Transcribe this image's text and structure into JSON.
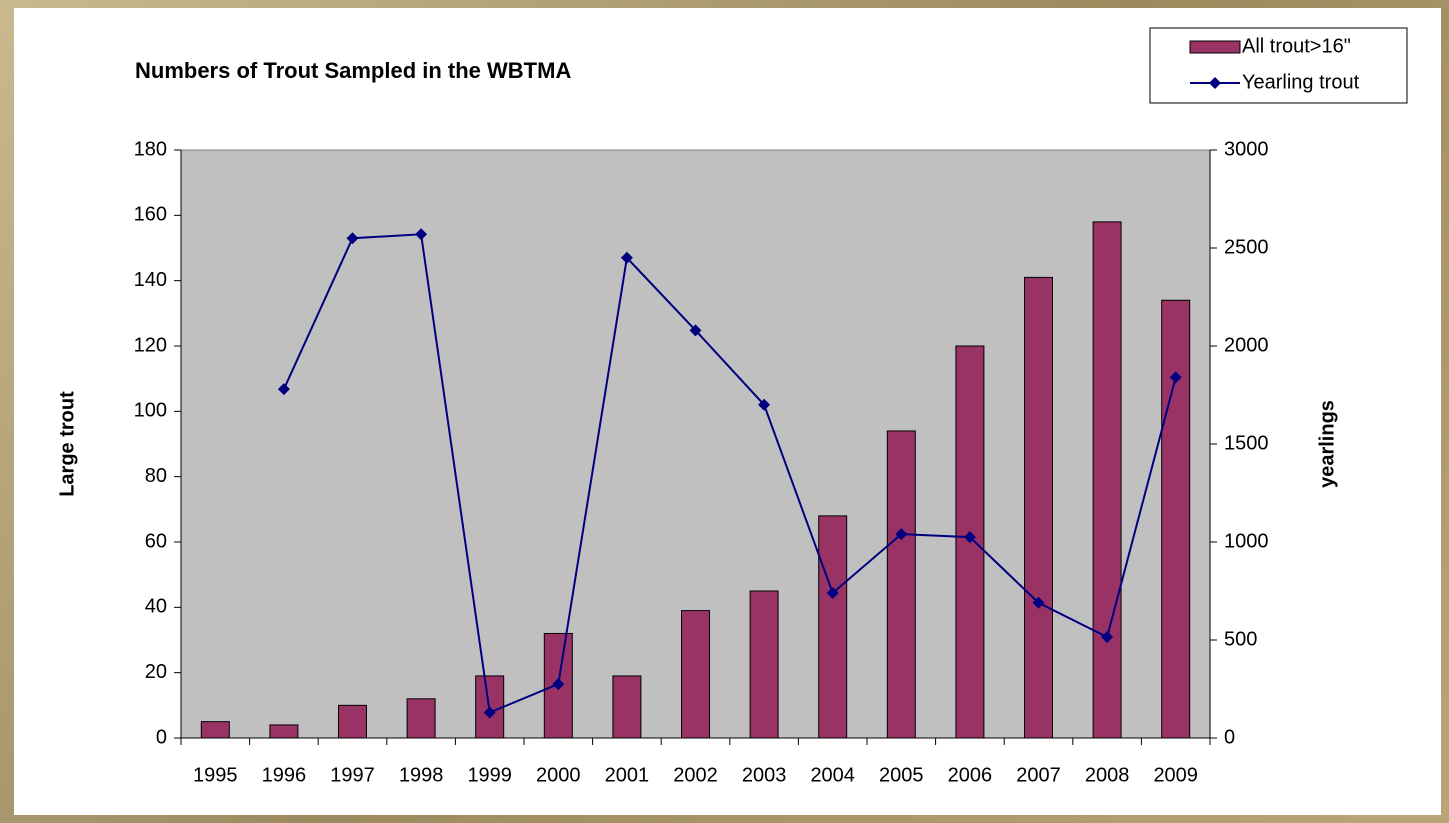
{
  "chart_data": {
    "type": "bar",
    "title": "Numbers of Trout Sampled in the WBTMA",
    "y_label": "Large trout",
    "y2_label": "yearlings",
    "categories": [
      "1995",
      "1996",
      "1997",
      "1998",
      "1999",
      "2000",
      "2001",
      "2002",
      "2003",
      "2004",
      "2005",
      "2006",
      "2007",
      "2008",
      "2009"
    ],
    "series": [
      {
        "name": "All trout>16\"",
        "type": "bar",
        "color": "#993366",
        "values": [
          5,
          4,
          10,
          12,
          19,
          32,
          19,
          39,
          45,
          68,
          94,
          120,
          141,
          158,
          134
        ]
      },
      {
        "name": "Yearling trout",
        "type": "line",
        "axis": "y2",
        "color": "#000080",
        "values": [
          null,
          1780,
          2550,
          2570,
          130,
          275,
          2450,
          2080,
          1700,
          740,
          1040,
          1025,
          690,
          515,
          1840
        ]
      }
    ],
    "ylim": [
      0,
      180
    ],
    "yticks": [
      0,
      20,
      40,
      60,
      80,
      100,
      120,
      140,
      160,
      180
    ],
    "y2lim": [
      0,
      3000
    ],
    "y2ticks": [
      0,
      500,
      1000,
      1500,
      2000,
      2500,
      3000
    ],
    "plot_background": "#c0c0c0",
    "legend": "top-right"
  }
}
